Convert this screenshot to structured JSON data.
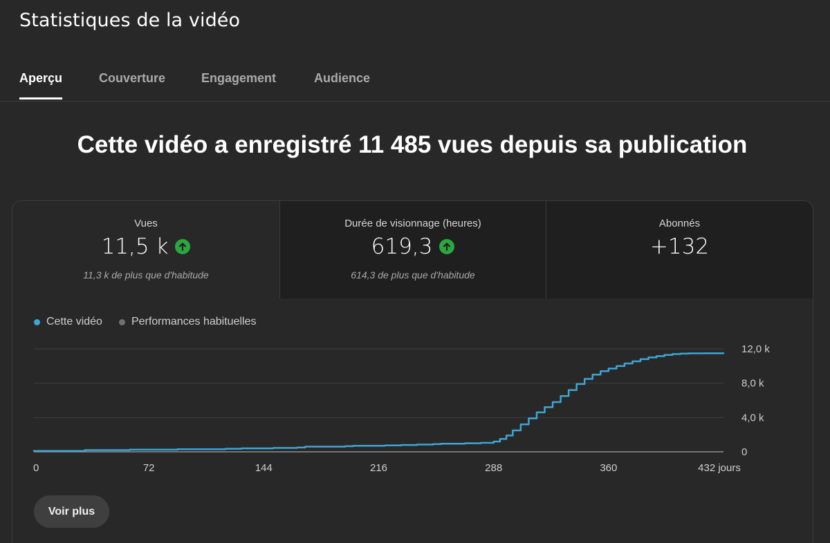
{
  "page": {
    "title": "Statistiques de la vidéo"
  },
  "tabs": [
    {
      "label": "Aperçu",
      "active": true
    },
    {
      "label": "Couverture",
      "active": false
    },
    {
      "label": "Engagement",
      "active": false
    },
    {
      "label": "Audience",
      "active": false
    }
  ],
  "headline": "Cette vidéo a enregistré 11 485 vues depuis sa publication",
  "metrics": [
    {
      "label": "Vues",
      "value": "11,5 k",
      "trend": "up",
      "sub": "11,3 k de plus que d'habitude"
    },
    {
      "label": "Durée de visionnage (heures)",
      "value": "619,3",
      "trend": "up",
      "sub": "614,3 de plus que d'habitude"
    },
    {
      "label": "Abonnés",
      "value": "+132"
    }
  ],
  "legend": [
    {
      "label": "Cette vidéo",
      "color": "#3ea6d6"
    },
    {
      "label": "Performances habituelles",
      "color": "#717171"
    }
  ],
  "colors": {
    "accent": "#3ea6d6",
    "trend_up": "#2ba640",
    "gridline": "#3e3e3e",
    "baseline": "#909090"
  },
  "icons": {
    "trend_up": "arrow-up-circle-icon"
  },
  "more_button": {
    "label": "Voir plus"
  },
  "chart_data": {
    "type": "line",
    "xlabel": "",
    "ylabel": "",
    "xlim": [
      0,
      432
    ],
    "ylim": [
      0,
      12000
    ],
    "x_ticks": [
      0,
      72,
      144,
      216,
      288,
      360,
      432
    ],
    "x_tick_labels": [
      "0",
      "72",
      "144",
      "216",
      "288",
      "360",
      "432 jours"
    ],
    "y_ticks": [
      0,
      4000,
      8000,
      12000
    ],
    "y_tick_labels": [
      "0",
      "4,0 k",
      "8,0 k",
      "12,0 k"
    ],
    "grid": true,
    "legend_position": "top-left",
    "series": [
      {
        "name": "Cette vidéo",
        "x": [
          0,
          30,
          32,
          60,
          90,
          120,
          130,
          150,
          165,
          170,
          195,
          200,
          220,
          230,
          240,
          250,
          255,
          270,
          280,
          288,
          292,
          296,
          300,
          305,
          310,
          315,
          320,
          325,
          330,
          335,
          340,
          345,
          350,
          355,
          360,
          365,
          370,
          375,
          380,
          385,
          390,
          395,
          400,
          405,
          410,
          420,
          425,
          432
        ],
        "y": [
          100,
          100,
          200,
          250,
          300,
          350,
          400,
          450,
          500,
          600,
          650,
          700,
          750,
          800,
          850,
          900,
          950,
          1000,
          1050,
          1200,
          1500,
          1900,
          2500,
          3200,
          3900,
          4600,
          5200,
          5800,
          6500,
          7200,
          7900,
          8500,
          9000,
          9400,
          9700,
          10000,
          10300,
          10550,
          10800,
          11000,
          11150,
          11300,
          11400,
          11450,
          11480,
          11485,
          11490,
          11485
        ]
      },
      {
        "name": "Performances habituelles",
        "x": [
          0,
          432
        ],
        "y": [
          0,
          0
        ]
      }
    ]
  }
}
